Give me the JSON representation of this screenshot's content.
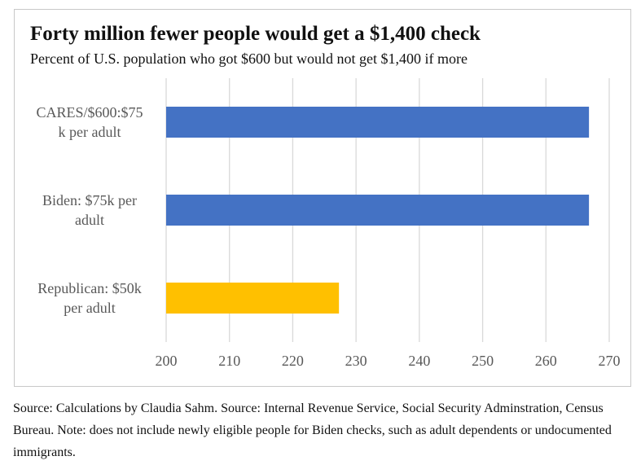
{
  "chart_data": {
    "type": "bar",
    "orientation": "horizontal",
    "title": "Forty million fewer people would get a $1,400 check",
    "subtitle": "Percent of U.S. population who got $600 but would not get $1,400 if more",
    "categories": [
      [
        "CARES/$600:$75",
        "k per adult"
      ],
      [
        "Biden: $75k per",
        "adult"
      ],
      [
        "Republican: $50k",
        "per adult"
      ]
    ],
    "values": [
      266.8,
      266.8,
      227.3
    ],
    "bar_colors": [
      "#4472c4",
      "#4472c4",
      "#ffc000"
    ],
    "xlim": [
      200,
      270
    ],
    "xticks": [
      200,
      210,
      220,
      230,
      240,
      250,
      260,
      270
    ],
    "grid": true,
    "xlabel": "",
    "ylabel": ""
  },
  "source_note": "Source: Calculations by Claudia Sahm. Source: Internal Revenue Service, Social Security Adminstration, Census Bureau. Note: does not include newly eligible people for Biden checks, such as adult dependents or undocumented immigrants."
}
